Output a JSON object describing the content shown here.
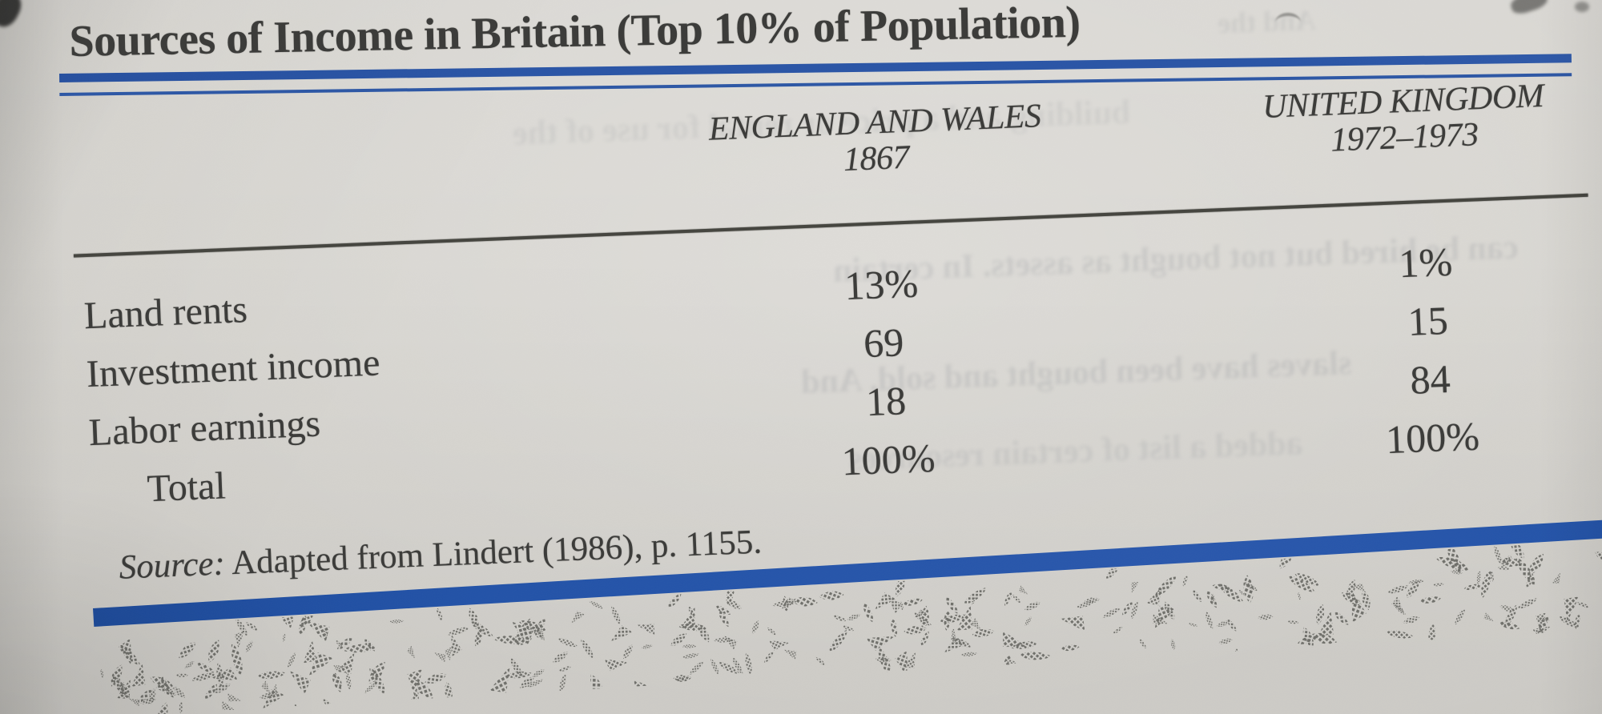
{
  "table": {
    "title": "Sources of Income in Britain (Top 10% of Population)",
    "columns": [
      {
        "line1": "ENGLAND AND WALES",
        "line2": "1867"
      },
      {
        "line1": "UNITED KINGDOM",
        "line2": "1972–1973"
      }
    ],
    "rows": [
      {
        "label": "Land rents",
        "values": [
          "13%",
          "1%"
        ]
      },
      {
        "label": "Investment income",
        "values": [
          "69",
          "15"
        ]
      },
      {
        "label": "Labor earnings",
        "values": [
          "18",
          "84"
        ]
      },
      {
        "label": "Total",
        "values": [
          "100%",
          "100%"
        ]
      }
    ],
    "source_label": "Source:",
    "source_text": " Adapted from Lindert (1986), p. 1155."
  },
  "chart_data": {
    "type": "table",
    "title": "Sources of Income in Britain (Top 10% of Population)",
    "columns": [
      "",
      "England and Wales 1867",
      "United Kingdom 1972–1973"
    ],
    "rows": [
      [
        "Land rents",
        "13%",
        "1%"
      ],
      [
        "Investment income",
        "69",
        "15"
      ],
      [
        "Labor earnings",
        "18",
        "84"
      ],
      [
        "Total",
        "100%",
        "100%"
      ]
    ],
    "values_numeric": {
      "england_wales_1867": [
        13,
        69,
        18,
        100
      ],
      "united_kingdom_1972_1973": [
        1,
        15,
        84,
        100
      ]
    },
    "source": "Adapted from Lindert (1986), p. 1155."
  },
  "colors": {
    "accent_blue_rule": "#2a55a6",
    "bottom_bar_blue": "#2353a8",
    "ink": "#3b3b39",
    "paper": "#d8d6d1",
    "pattern_gray": "#70706b"
  },
  "decorations": {
    "bleedthrough_fragments": [
      {
        "text": "building and a price or rental for use of the",
        "mirrored": true
      },
      {
        "text": "can be hired but not bought as assets. In certain",
        "mirrored": true
      },
      {
        "text": "slaves have been bought and sold. And",
        "mirrored": true
      },
      {
        "text": "added a list of certain resources",
        "mirrored": true
      },
      {
        "text": "And the",
        "mirrored": true
      }
    ]
  }
}
